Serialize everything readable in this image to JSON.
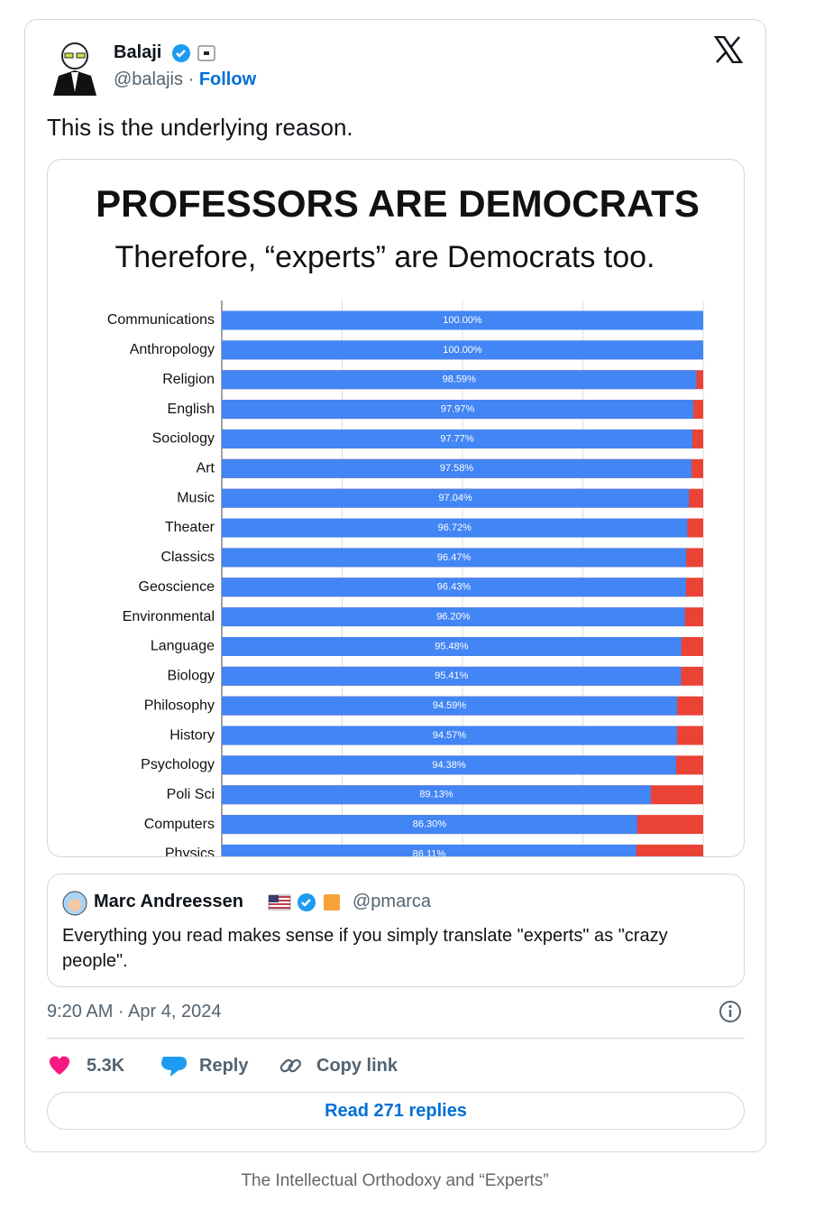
{
  "tweet": {
    "author": {
      "name": "Balaji",
      "handle": "@balajis",
      "separator": "·",
      "follow": "Follow"
    },
    "text": "This is the underlying reason.",
    "quote": {
      "name": "Marc Andreessen",
      "handle": "@pmarca",
      "text": "Everything you read makes sense if you simply translate \"experts\" as \"crazy people\"."
    },
    "timestamp": "9:20 AM · Apr 4, 2024",
    "likes": "5.3K",
    "reply": "Reply",
    "copy_link": "Copy link",
    "read_replies": "Read 271 replies"
  },
  "caption": "The Intellectual Orthodoxy and “Experts”",
  "chart_data": {
    "type": "hbar",
    "title": "PROFESSORS ARE DEMOCRATS",
    "subtitle": "Therefore, “experts” are Democrats too.",
    "categories": [
      "Communications",
      "Anthropology",
      "Religion",
      "English",
      "Sociology",
      "Art",
      "Music",
      "Theater",
      "Classics",
      "Geoscience",
      "Environmental",
      "Language",
      "Biology",
      "Philosophy",
      "History",
      "Psychology",
      "Poli Sci",
      "Computers",
      "Physics"
    ],
    "values": [
      100,
      100,
      98.59,
      97.97,
      97.77,
      97.58,
      97.04,
      96.72,
      96.47,
      96.43,
      96.2,
      95.48,
      95.41,
      94.59,
      94.57,
      94.38,
      89.13,
      86.3,
      86.11
    ],
    "value_labels": [
      "100.00%",
      "100.00%",
      "98.59%",
      "97.97%",
      "97.77%",
      "97.58%",
      "97.04%",
      "96.72%",
      "96.47%",
      "96.43%",
      "96.20%",
      "95.48%",
      "95.41%",
      "94.59%",
      "94.57%",
      "94.38%",
      "89.13%",
      "86.30%",
      "86.11%"
    ],
    "color": "#4285f4",
    "remainder_color": "#ea4335",
    "xlim": [
      0,
      100
    ],
    "xticks": [
      0,
      25,
      50,
      75,
      100
    ],
    "grid": true
  }
}
